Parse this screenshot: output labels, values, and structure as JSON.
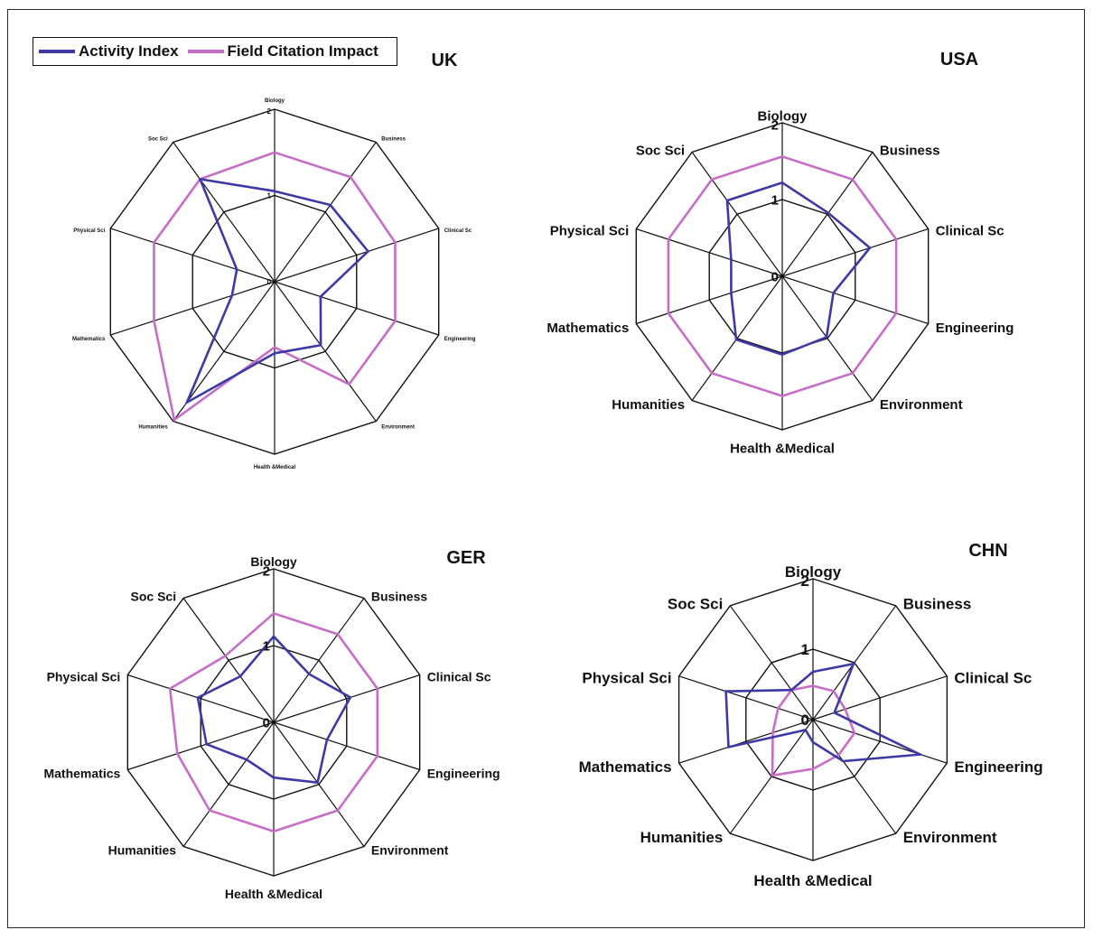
{
  "legend": {
    "activity_label": "Activity Index",
    "citation_label": "Field Citation Impact"
  },
  "colors": {
    "activity": "#3d3aa6",
    "citation": "#c76cc7",
    "grid": "#111111"
  },
  "chart_data": [
    {
      "type": "radar",
      "title": "UK",
      "axes": [
        "Biology",
        "Business",
        "Clinical Sc",
        "Engineering",
        "Environment",
        "Health &Medical",
        "Humanities",
        "Mathematics",
        "Physical Sci",
        "Soc Sci"
      ],
      "rlim": [
        0,
        2
      ],
      "ticks": [
        0,
        1,
        2
      ],
      "series": [
        {
          "name": "Activity Index",
          "values": [
            1.05,
            1.1,
            1.14,
            0.56,
            0.91,
            0.83,
            1.73,
            0.52,
            0.46,
            1.47
          ]
        },
        {
          "name": "Field Citation Impact",
          "values": [
            1.5,
            1.5,
            1.47,
            1.47,
            1.47,
            0.76,
            1.98,
            1.47,
            1.47,
            1.47
          ]
        }
      ]
    },
    {
      "type": "radar",
      "title": "USA",
      "axes": [
        "Biology",
        "Business",
        "Clinical Sc",
        "Engineering",
        "Environment",
        "Health &Medical",
        "Humanities",
        "Mathematics",
        "Physical Sci",
        "Soc Sci"
      ],
      "rlim": [
        0,
        2
      ],
      "ticks": [
        0,
        1,
        2
      ],
      "series": [
        {
          "name": "Activity Index",
          "values": [
            1.22,
            1.02,
            1.2,
            0.7,
            0.98,
            1.02,
            1.02,
            0.7,
            0.7,
            1.22
          ]
        },
        {
          "name": "Field Citation Impact",
          "values": [
            1.56,
            1.56,
            1.56,
            1.56,
            1.56,
            1.56,
            1.56,
            1.56,
            1.56,
            1.56
          ]
        }
      ]
    },
    {
      "type": "radar",
      "title": "GER",
      "axes": [
        "Biology",
        "Business",
        "Clinical Sc",
        "Engineering",
        "Environment",
        "Health &Medical",
        "Humanities",
        "Mathematics",
        "Physical Sci",
        "Soc Sci"
      ],
      "rlim": [
        0,
        2
      ],
      "ticks": [
        0,
        1,
        2
      ],
      "series": [
        {
          "name": "Activity Index",
          "values": [
            1.12,
            0.78,
            1.05,
            0.73,
            0.97,
            0.72,
            0.6,
            0.92,
            1.04,
            0.74
          ]
        },
        {
          "name": "Field Citation Impact",
          "values": [
            1.42,
            1.42,
            1.42,
            1.42,
            1.42,
            1.42,
            1.42,
            1.32,
            1.42,
            1.07
          ]
        }
      ]
    },
    {
      "type": "radar",
      "title": "CHN",
      "axes": [
        "Biology",
        "Business",
        "Clinical Sc",
        "Engineering",
        "Environment",
        "Health &Medical",
        "Humanities",
        "Mathematics",
        "Physical Sci",
        "Soc Sci"
      ],
      "rlim": [
        0,
        2
      ],
      "ticks": [
        0,
        1,
        2
      ],
      "series": [
        {
          "name": "Activity Index",
          "values": [
            0.68,
            0.98,
            0.32,
            1.6,
            0.73,
            0.32,
            0.18,
            1.26,
            1.3,
            0.52
          ]
        },
        {
          "name": "Field Citation Impact",
          "values": [
            0.48,
            0.5,
            0.48,
            0.62,
            0.62,
            0.7,
            0.98,
            0.6,
            0.52,
            0.52
          ]
        }
      ]
    }
  ]
}
